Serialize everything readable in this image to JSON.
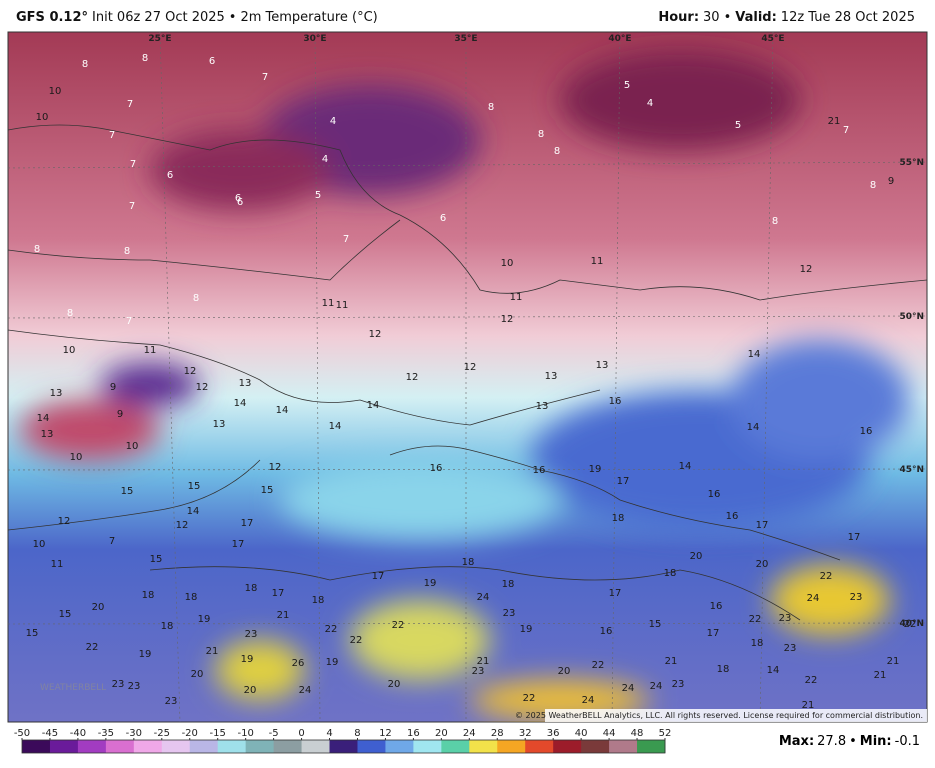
{
  "header": {
    "model": "GFS 0.12°",
    "init": "Init 06z 27 Oct 2025",
    "separator": "•",
    "field": "2m Temperature (°C)",
    "hour_label": "Hour:",
    "hour": 30,
    "valid_label": "Valid:",
    "valid": "12z Tue 28 Oct 2025"
  },
  "map": {
    "lon_labels": [
      "25°E",
      "30°E",
      "35°E",
      "40°E",
      "45°E"
    ],
    "lat_labels": [
      "55°N",
      "50°N",
      "45°N",
      "40°N"
    ],
    "labels": [
      8,
      8,
      6,
      7,
      10,
      7,
      10,
      7,
      4,
      4,
      7,
      6,
      6,
      6,
      5,
      7,
      7,
      6,
      8,
      8,
      8,
      5,
      4,
      5,
      7,
      8,
      9,
      8,
      8,
      8,
      8,
      10,
      11,
      12,
      11,
      11,
      11,
      12,
      8,
      7,
      10,
      11,
      12,
      12,
      12,
      9,
      13,
      13,
      14,
      12,
      12,
      13,
      13,
      14,
      14,
      13,
      9,
      13,
      14,
      14,
      14,
      13,
      16,
      14,
      16,
      10,
      10,
      12,
      16,
      16,
      19,
      17,
      14,
      15,
      15,
      15,
      14,
      16,
      12,
      12,
      17,
      18,
      16,
      17,
      10,
      7,
      17,
      17,
      11,
      15,
      18,
      20,
      20,
      22,
      17,
      18,
      18,
      17,
      19,
      18,
      18,
      18,
      18,
      24,
      17,
      24,
      23,
      15,
      20,
      19,
      18,
      21,
      23,
      15,
      22,
      22,
      19,
      16,
      15,
      16,
      17,
      22,
      23,
      22,
      22,
      22,
      23,
      21,
      19,
      18,
      23,
      19,
      26,
      19,
      21,
      23,
      20,
      22,
      21,
      18,
      14,
      21,
      20,
      21,
      23,
      23,
      20,
      22,
      20,
      24,
      22,
      24,
      24,
      24,
      23,
      23,
      21,
      21
    ],
    "copyright": "© 2025 WeatherBELL Analytics, LLC. All rights reserved. License required for commercial distribution.",
    "logo": "WEATHERBELL"
  },
  "colorbar": {
    "ticks": [
      -50,
      -45,
      -40,
      -35,
      -30,
      -25,
      -20,
      -15,
      -10,
      -5,
      0,
      4,
      8,
      12,
      16,
      20,
      24,
      28,
      32,
      36,
      40,
      44,
      48,
      52
    ],
    "colors": [
      "#3b0a5a",
      "#6a1b9a",
      "#a23cc1",
      "#d96fd0",
      "#f0a8e8",
      "#e6c6f0",
      "#b9b6e6",
      "#9fe0ea",
      "#7fb3b7",
      "#8c9ea2",
      "#c9cfd2",
      "#3a1f7a",
      "#3f5fd0",
      "#6fa8e8",
      "#a0e6f0",
      "#5ad0a8",
      "#f2e24a",
      "#f5a623",
      "#e3492b",
      "#9c1c2a",
      "#7a3a3a",
      "#b07a8a",
      "#3a9a50"
    ]
  },
  "stats": {
    "max_label": "Max:",
    "max": 27.8,
    "separator": "•",
    "min_label": "Min:",
    "min": -0.1
  }
}
